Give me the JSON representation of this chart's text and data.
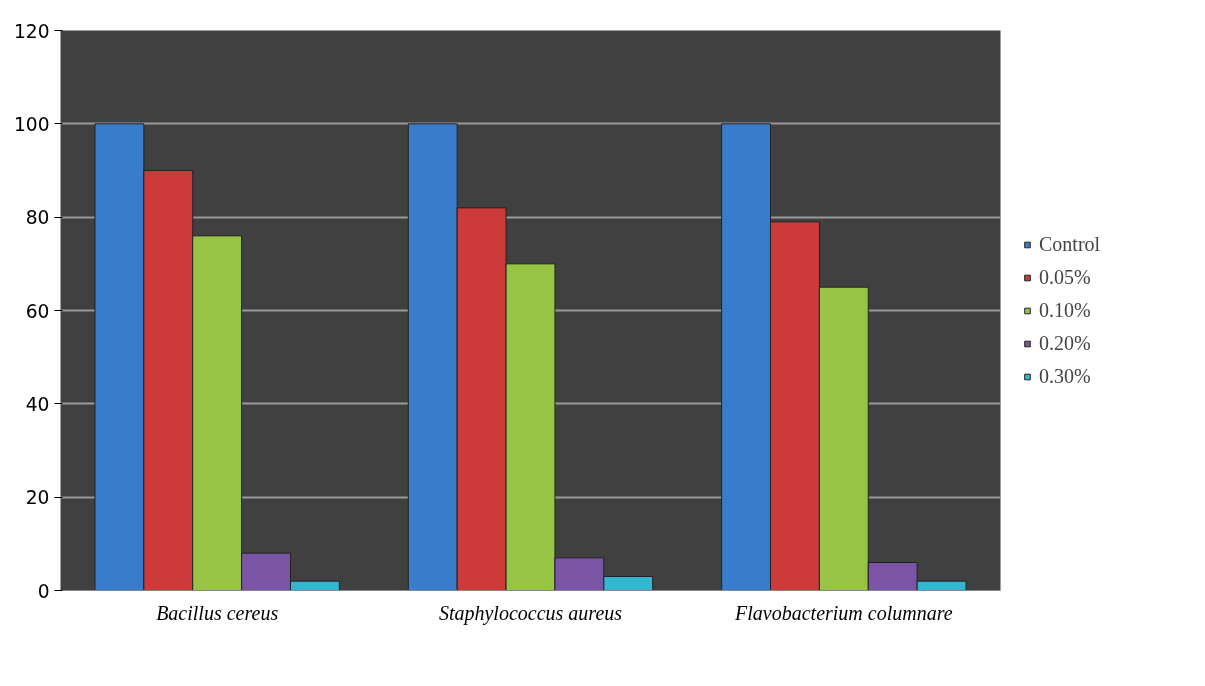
{
  "chart_data": {
    "type": "bar",
    "categories": [
      "Bacillus cereus",
      "Staphylococcus aureus",
      "Flavobacterium columnare"
    ],
    "series": [
      {
        "name": "Control",
        "color": "#3a7ccc",
        "values": [
          100,
          100,
          100
        ]
      },
      {
        "name": "0.05%",
        "color": "#cc3b3a",
        "values": [
          90,
          82,
          79
        ]
      },
      {
        "name": "0.10%",
        "color": "#98c446",
        "values": [
          76,
          70,
          65
        ]
      },
      {
        "name": "0.20%",
        "color": "#7a55a6",
        "values": [
          8,
          7,
          6
        ]
      },
      {
        "name": "0.30%",
        "color": "#33b7d1",
        "values": [
          2,
          3,
          2
        ]
      }
    ],
    "ylim": [
      0,
      120
    ],
    "yticks": [
      0,
      20,
      40,
      60,
      80,
      100,
      120
    ],
    "grid": "y",
    "legend": "right"
  }
}
